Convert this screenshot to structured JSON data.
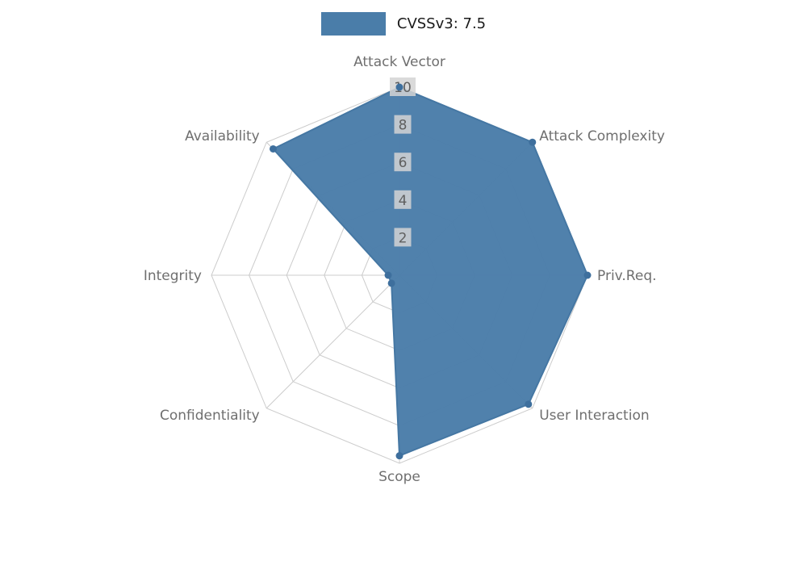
{
  "chart_data": {
    "type": "radar",
    "title": "",
    "legend": {
      "label": "CVSSv3: 7.5",
      "position": "top-center"
    },
    "categories": [
      "Attack Vector",
      "Attack Complexity",
      "Priv.Req.",
      "User Interaction",
      "Scope",
      "Confidentiality",
      "Integrity",
      "Availability"
    ],
    "series": [
      {
        "name": "CVSSv3: 7.5",
        "values": [
          10,
          10,
          10,
          9.7,
          9.6,
          0.6,
          0.6,
          9.5
        ]
      }
    ],
    "radial_ticks": [
      2,
      4,
      6,
      8,
      10
    ],
    "radial_range": [
      0,
      10
    ],
    "grid": "on",
    "colors": {
      "series_fill": "#4a7da9",
      "series_stroke": "#4577a3",
      "series_marker": "#3e6f9d",
      "grid": "#cccccc",
      "category_label": "#6f6f6f",
      "tick_text": "#5f5f5f",
      "tick_bg": "#d4d4d4",
      "legend_text": "#1a1a1a",
      "background": "#ffffff"
    }
  }
}
